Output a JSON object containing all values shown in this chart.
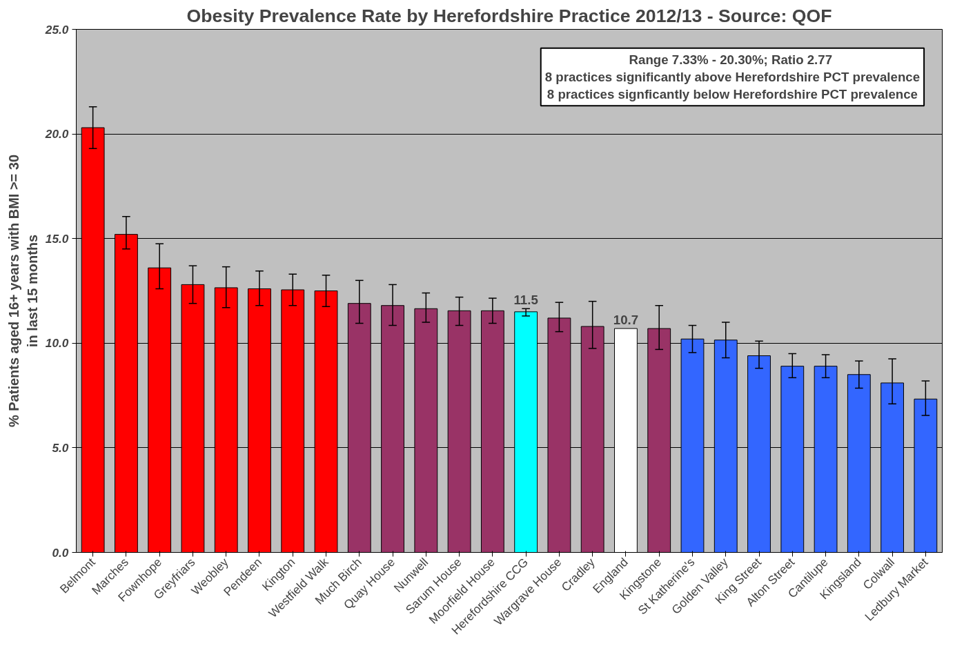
{
  "chart_data": {
    "type": "bar",
    "title": "Obesity Prevalence Rate by Herefordshire Practice 2012/13 - Source: QOF",
    "ylabel": "% Patients aged 16+ years with BMI >= 30\nin last 15 months",
    "categories": [
      "Belmont",
      "Marches",
      "Fownhope",
      "Greyfriars",
      "Weobley",
      "Pendeen",
      "Kington",
      "Westfield Walk",
      "Much Birch",
      "Quay House",
      "Nunwell",
      "Sarum House",
      "Moorfield House",
      "Herefordshire CCG",
      "Wargrave House",
      "Cradley",
      "England",
      "Kingstone",
      "St Katherine's",
      "Golden Valley",
      "King Street",
      "Alton Street",
      "Cantilupe",
      "Kingsland",
      "Colwall",
      "Ledbury Market"
    ],
    "values": [
      20.3,
      15.2,
      13.6,
      12.8,
      12.65,
      12.6,
      12.55,
      12.5,
      11.9,
      11.8,
      11.65,
      11.55,
      11.55,
      11.5,
      11.2,
      10.8,
      10.7,
      10.7,
      10.2,
      10.15,
      9.4,
      8.9,
      8.9,
      8.5,
      8.1,
      7.33
    ],
    "colors": [
      "#ff0000",
      "#ff0000",
      "#ff0000",
      "#ff0000",
      "#ff0000",
      "#ff0000",
      "#ff0000",
      "#ff0000",
      "#993366",
      "#993366",
      "#993366",
      "#993366",
      "#993366",
      "#00ffff",
      "#993366",
      "#993366",
      "#ffffff",
      "#993366",
      "#3366ff",
      "#3366ff",
      "#3366ff",
      "#3366ff",
      "#3366ff",
      "#3366ff",
      "#3366ff",
      "#3366ff"
    ],
    "errors": [
      [
        19.3,
        21.3
      ],
      [
        14.5,
        16.05
      ],
      [
        12.6,
        14.75
      ],
      [
        11.9,
        13.7
      ],
      [
        11.7,
        13.65
      ],
      [
        11.8,
        13.45
      ],
      [
        11.8,
        13.3
      ],
      [
        11.75,
        13.25
      ],
      [
        10.95,
        13.0
      ],
      [
        10.85,
        12.8
      ],
      [
        11.0,
        12.4
      ],
      [
        10.85,
        12.2
      ],
      [
        10.95,
        12.15
      ],
      [
        11.3,
        11.65
      ],
      [
        10.55,
        11.95
      ],
      [
        9.75,
        12.0
      ],
      null,
      [
        9.7,
        11.8
      ],
      [
        9.55,
        10.85
      ],
      [
        9.3,
        11.0
      ],
      [
        8.8,
        10.1
      ],
      [
        8.35,
        9.5
      ],
      [
        8.35,
        9.45
      ],
      [
        7.85,
        9.15
      ],
      [
        7.1,
        9.25
      ],
      [
        6.55,
        8.2
      ]
    ],
    "value_labels": [
      null,
      null,
      null,
      null,
      null,
      null,
      null,
      null,
      null,
      null,
      null,
      null,
      null,
      "11.5",
      null,
      null,
      "10.7",
      null,
      null,
      null,
      null,
      null,
      null,
      null,
      null,
      null
    ],
    "ylim": [
      0,
      25
    ],
    "yticks": [
      {
        "value": 0,
        "label": "0.0"
      },
      {
        "value": 5,
        "label": "5.0"
      },
      {
        "value": 10,
        "label": "10.0"
      },
      {
        "value": 15,
        "label": "15.0"
      },
      {
        "value": 20,
        "label": "20.0"
      },
      {
        "value": 25,
        "label": "25.0"
      }
    ],
    "grid": "y",
    "annotations": [
      "Range 7.33% - 20.30%;  Ratio 2.77",
      "8 practices significantly above Herefordshire PCT prevalence",
      "8 practices signficantly below Herefordshire PCT prevalence"
    ]
  }
}
